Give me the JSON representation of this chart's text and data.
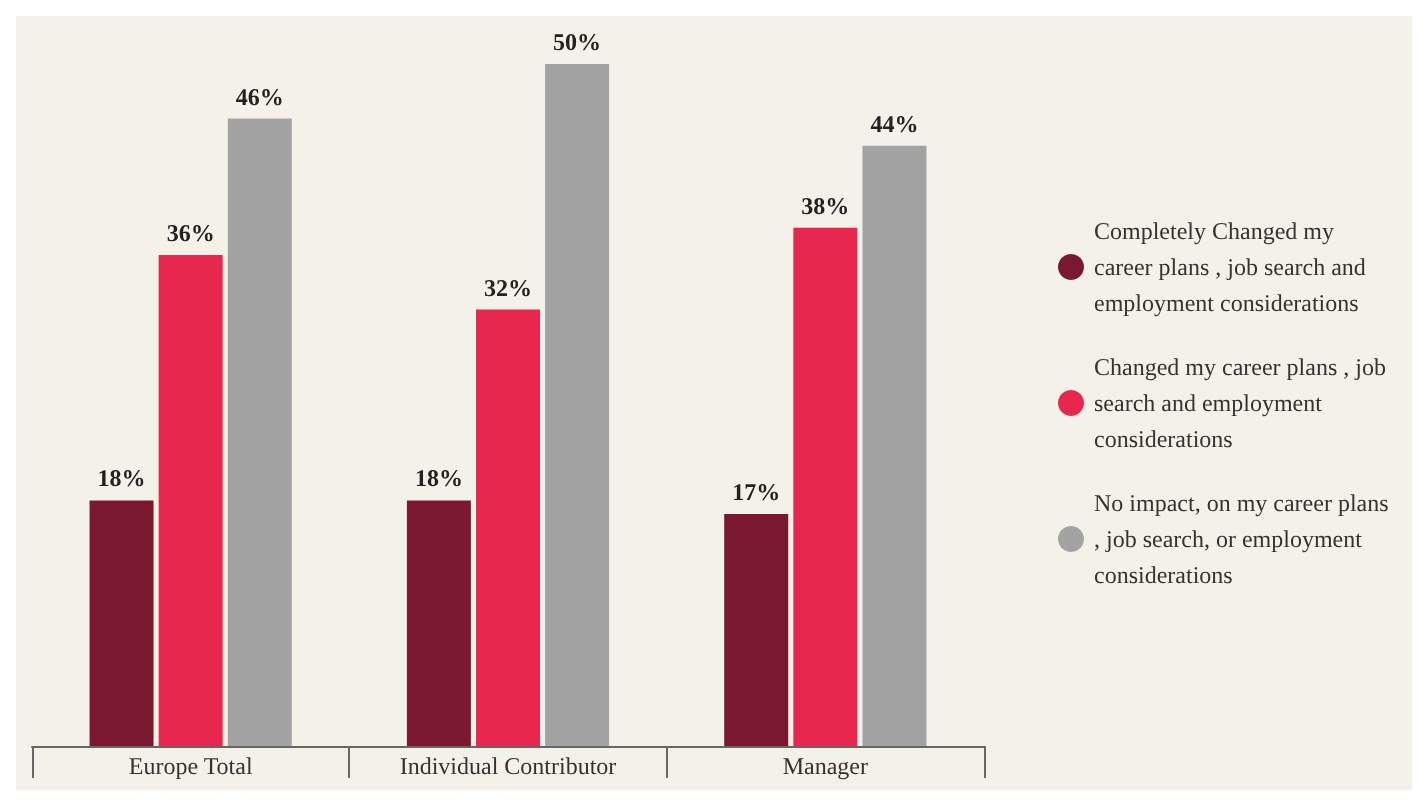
{
  "chart_data": {
    "type": "bar",
    "categories": [
      "Europe Total",
      "Individual Contributor",
      "Manager"
    ],
    "series": [
      {
        "name": "Completely Changed my career plans , job search and employment considerations",
        "color": "#7a1830",
        "values": [
          18,
          18,
          17
        ],
        "value_labels": [
          "18%",
          "18%",
          "17%"
        ]
      },
      {
        "name": "Changed my career plans , job search and employment considerations",
        "color": "#e8274f",
        "values": [
          36,
          32,
          38
        ],
        "value_labels": [
          "36%",
          "32%",
          "38%"
        ]
      },
      {
        "name": "No impact, on my career plans, job search, or employment considerations",
        "color": "#a3a3a3",
        "values": [
          46,
          50,
          44
        ],
        "value_labels": [
          "46%",
          "50%",
          "44%"
        ]
      }
    ],
    "legend": "right"
  }
}
